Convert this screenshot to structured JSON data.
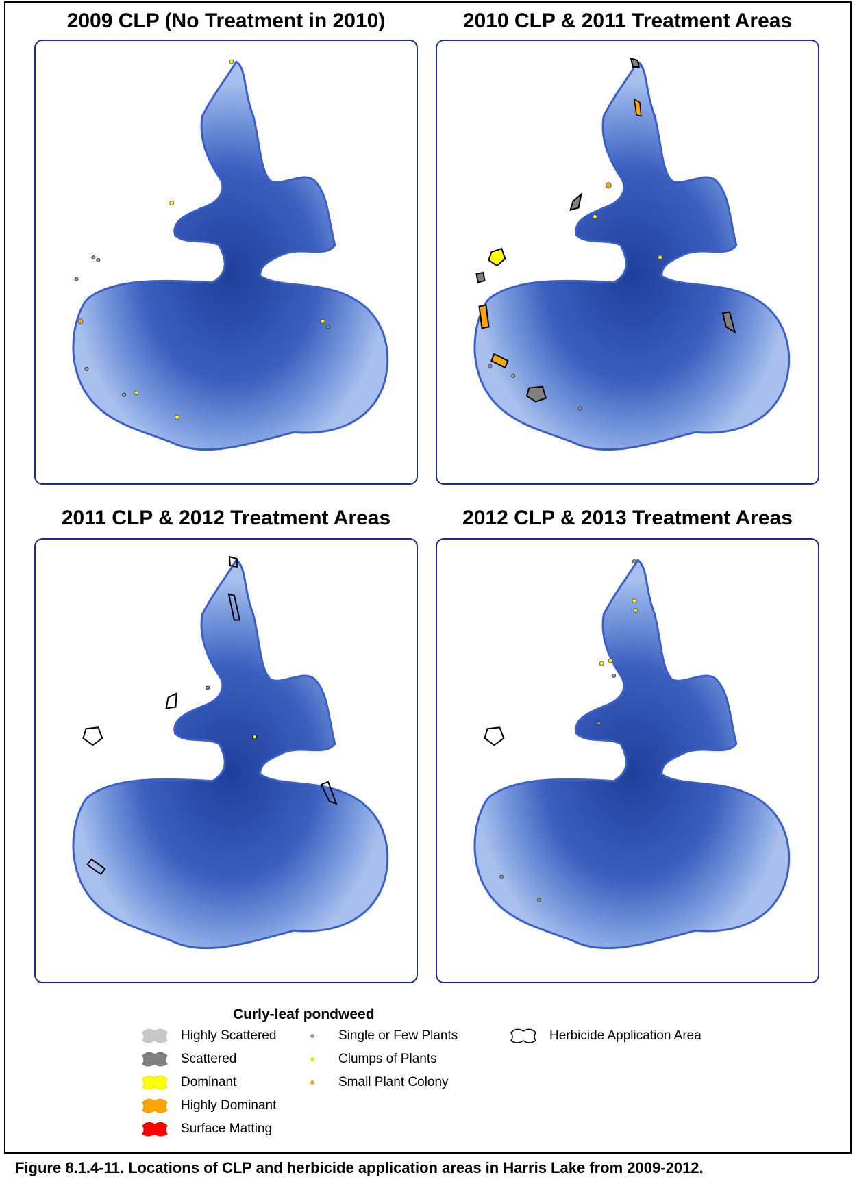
{
  "panels": [
    {
      "title": "2009 CLP (No Treatment in 2010)"
    },
    {
      "title": "2010 CLP & 2011 Treatment Areas"
    },
    {
      "title": "2011 CLP & 2012 Treatment Areas"
    },
    {
      "title": "2012 CLP & 2013 Treatment Areas"
    }
  ],
  "legend": {
    "title": "Curly-leaf pondweed",
    "polygons": [
      {
        "label": "Highly Scattered",
        "color": "#c8c8c8"
      },
      {
        "label": "Scattered",
        "color": "#808080"
      },
      {
        "label": "Dominant",
        "color": "#ffff00"
      },
      {
        "label": "Highly Dominant",
        "color": "#ffa500"
      },
      {
        "label": "Surface Matting",
        "color": "#ff0000"
      }
    ],
    "points": [
      {
        "label": "Single or Few Plants",
        "color": "#9a9a9a"
      },
      {
        "label": "Clumps of Plants",
        "color": "#ffff00"
      },
      {
        "label": "Small Plant Colony",
        "color": "#f5a623"
      }
    ],
    "outline": {
      "label": "Herbicide Application Area"
    }
  },
  "colors": {
    "lake_shore": "#3a5fc8",
    "lake_shallow": "#a9c0ee",
    "lake_deep": "#1f3f9a"
  },
  "caption": "Figure 8.1.4-11.  Locations of CLP and herbicide application areas in Harris Lake from 2009-2012."
}
